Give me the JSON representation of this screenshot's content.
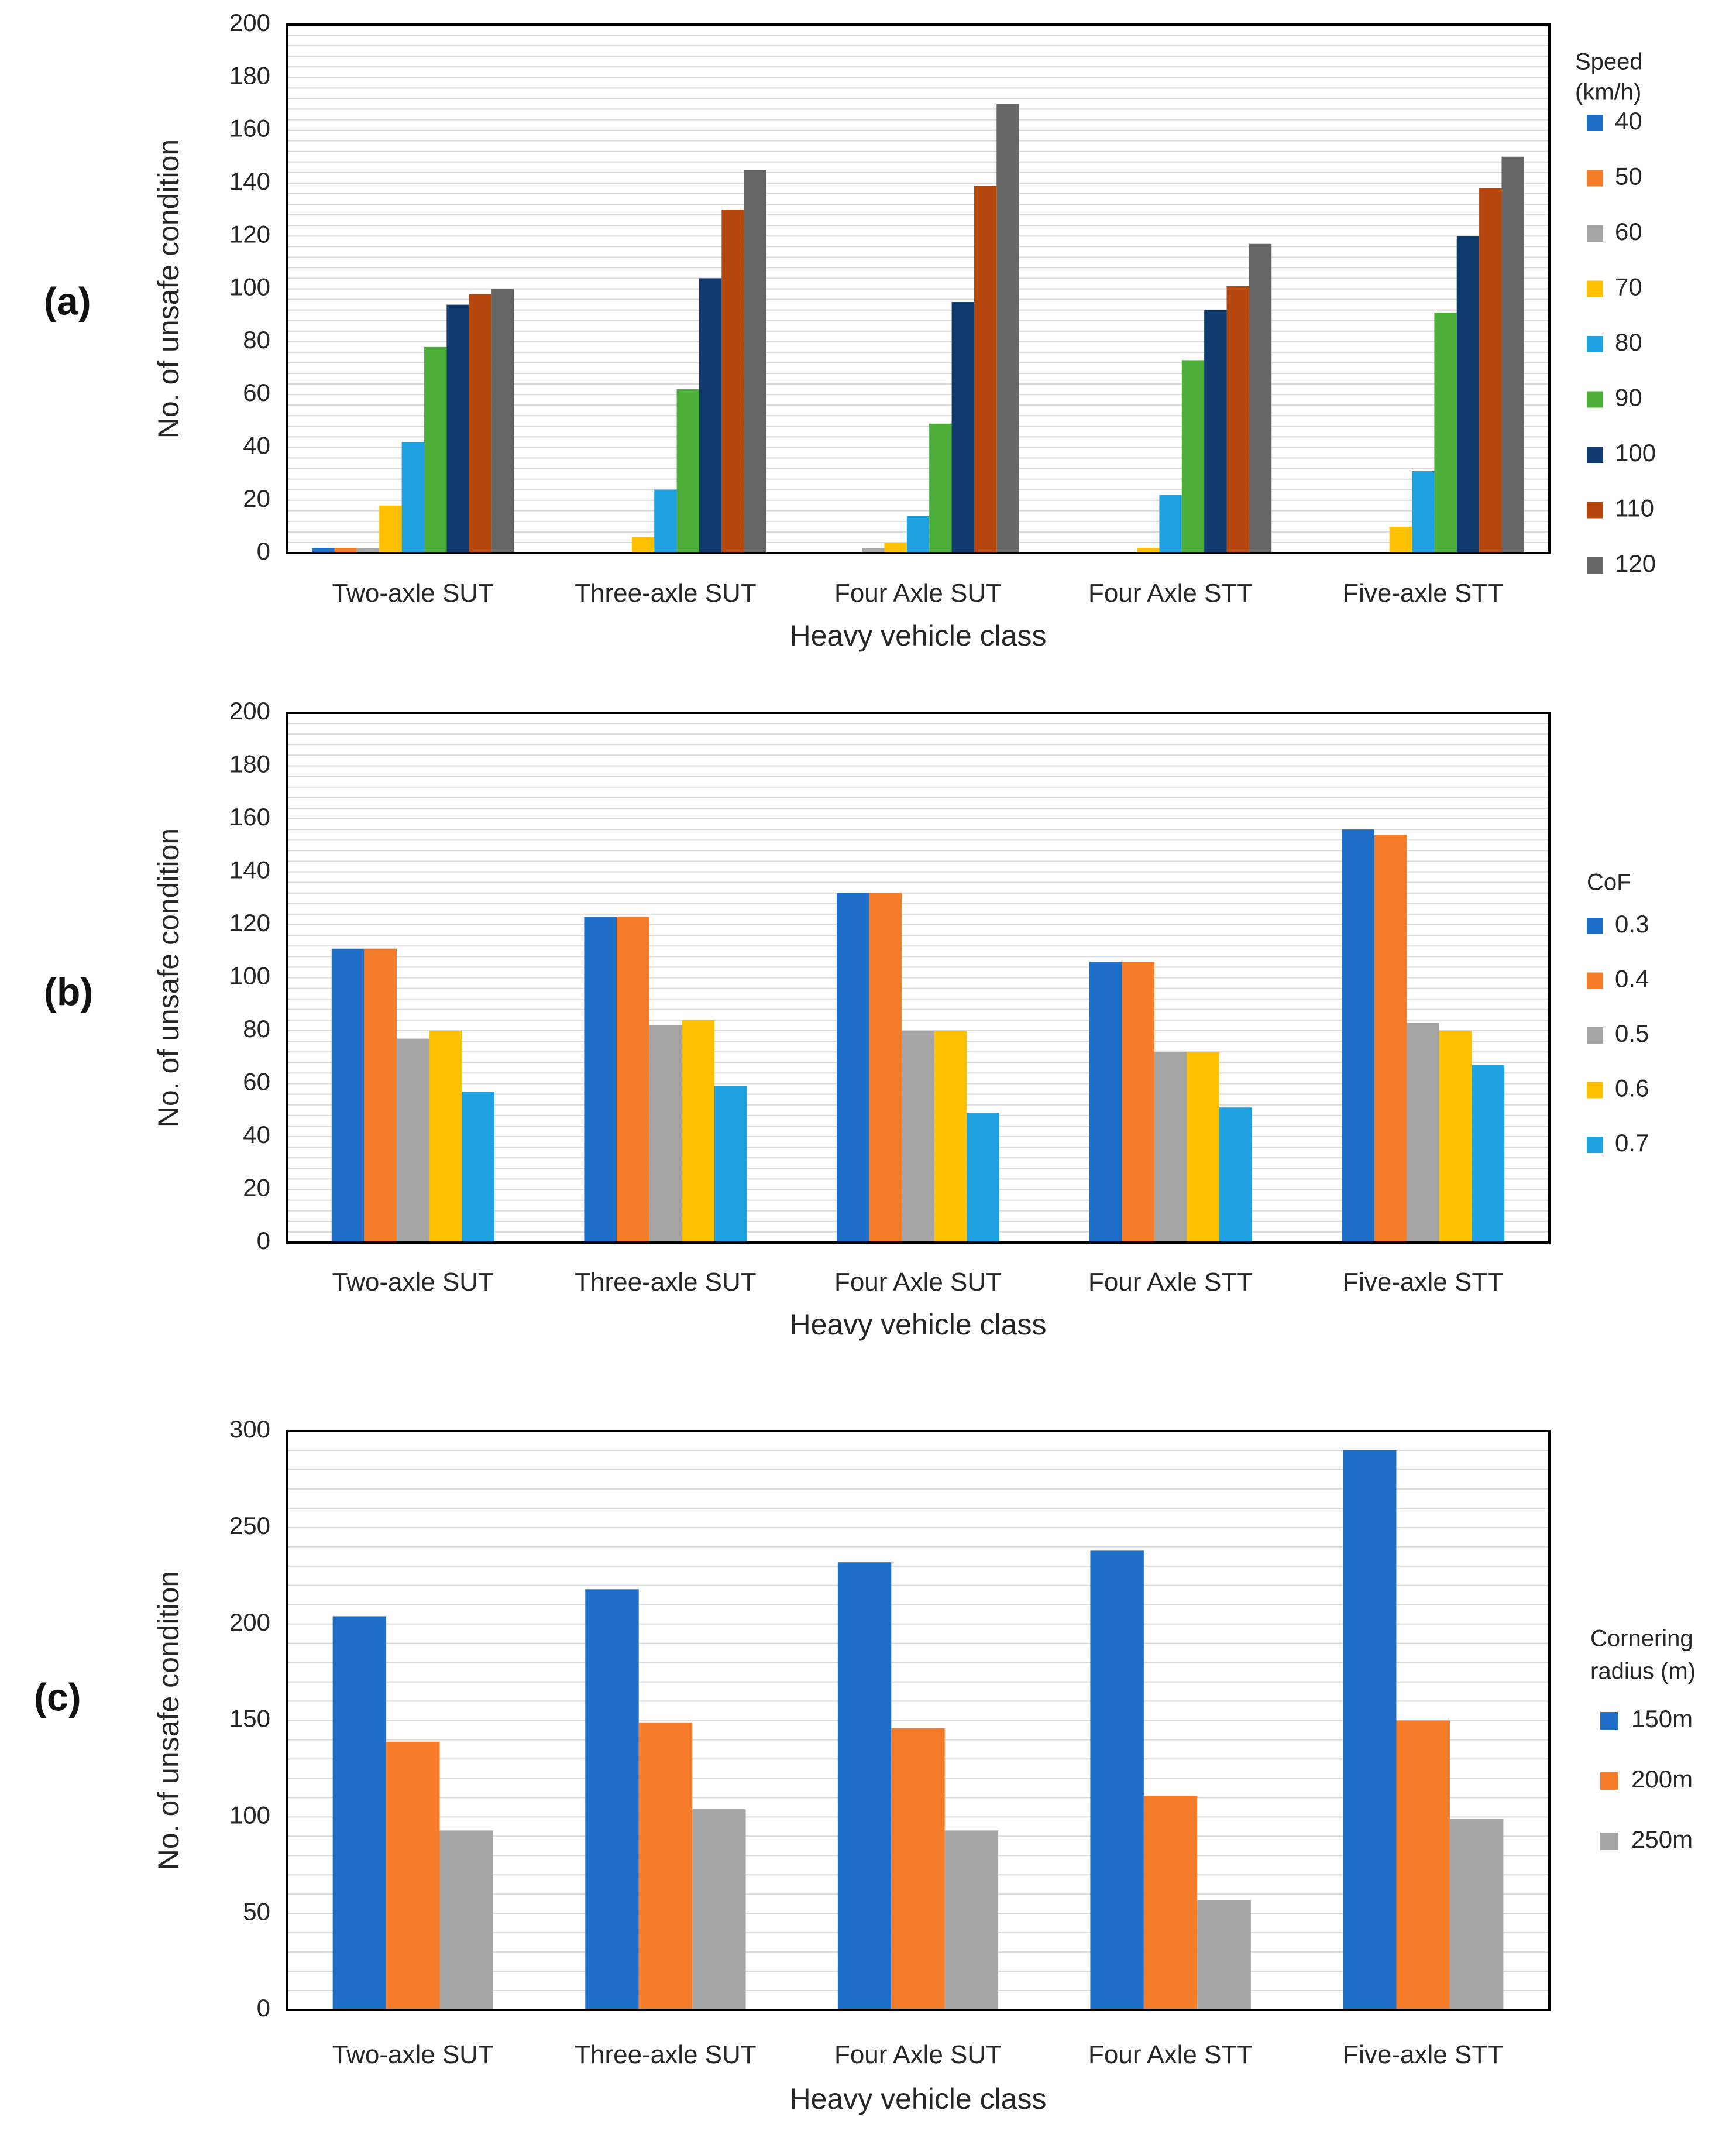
{
  "figure": {
    "panels": [
      {
        "id": "a",
        "panel_label": "(a)"
      },
      {
        "id": "b",
        "panel_label": "(b)"
      },
      {
        "id": "c",
        "panel_label": "(c)"
      }
    ]
  },
  "chart_data": [
    {
      "id": "a",
      "type": "bar",
      "title": "",
      "xlabel": "Heavy vehicle class",
      "ylabel": "No. of unsafe condition",
      "ylim": [
        0,
        200
      ],
      "yticks": [
        0,
        20,
        40,
        60,
        80,
        100,
        120,
        140,
        160,
        180,
        200
      ],
      "minor_grid_step": 4,
      "grid": true,
      "legend_position": "right",
      "legend_title_lines": [
        "Speed",
        "(km/h)"
      ],
      "categories": [
        "Two-axle SUT",
        "Three-axle SUT",
        "Four Axle SUT",
        "Four Axle STT",
        "Five-axle STT"
      ],
      "series": [
        {
          "name": "40",
          "color": "#1f6fc8",
          "values": [
            2,
            0,
            0,
            0,
            0
          ]
        },
        {
          "name": "50",
          "color": "#f57c28",
          "values": [
            2,
            0,
            0,
            0,
            0
          ]
        },
        {
          "name": "60",
          "color": "#a5a5a5",
          "values": [
            2,
            0,
            2,
            0,
            0
          ]
        },
        {
          "name": "70",
          "color": "#ffc000",
          "values": [
            18,
            6,
            4,
            2,
            10
          ]
        },
        {
          "name": "80",
          "color": "#1ea1e0",
          "values": [
            42,
            24,
            14,
            22,
            31
          ]
        },
        {
          "name": "90",
          "color": "#4daf3a",
          "values": [
            78,
            62,
            49,
            73,
            91
          ]
        },
        {
          "name": "100",
          "color": "#0e3a6e",
          "values": [
            94,
            104,
            95,
            92,
            120
          ]
        },
        {
          "name": "110",
          "color": "#b5460d",
          "values": [
            98,
            130,
            139,
            101,
            138
          ]
        },
        {
          "name": "120",
          "color": "#666666",
          "values": [
            100,
            145,
            170,
            117,
            150
          ]
        }
      ]
    },
    {
      "id": "b",
      "type": "bar",
      "title": "",
      "xlabel": "Heavy vehicle class",
      "ylabel": "No. of unsafe condition",
      "ylim": [
        0,
        200
      ],
      "yticks": [
        0,
        20,
        40,
        60,
        80,
        100,
        120,
        140,
        160,
        180,
        200
      ],
      "minor_grid_step": 4,
      "grid": true,
      "legend_position": "right",
      "legend_title_lines": [
        "CoF"
      ],
      "categories": [
        "Two-axle SUT",
        "Three-axle SUT",
        "Four Axle SUT",
        "Four Axle STT",
        "Five-axle STT"
      ],
      "series": [
        {
          "name": "0.3",
          "color": "#1f6fc8",
          "values": [
            111,
            123,
            132,
            106,
            156
          ]
        },
        {
          "name": "0.4",
          "color": "#f57c28",
          "values": [
            111,
            123,
            132,
            106,
            154
          ]
        },
        {
          "name": "0.5",
          "color": "#a5a5a5",
          "values": [
            77,
            82,
            80,
            72,
            83
          ]
        },
        {
          "name": "0.6",
          "color": "#ffc000",
          "values": [
            80,
            84,
            80,
            72,
            80
          ]
        },
        {
          "name": "0.7",
          "color": "#1ea1e0",
          "values": [
            57,
            59,
            49,
            51,
            67
          ]
        }
      ]
    },
    {
      "id": "c",
      "type": "bar",
      "title": "",
      "xlabel": "Heavy vehicle class",
      "ylabel": "No. of unsafe condition",
      "ylim": [
        0,
        300
      ],
      "yticks": [
        0,
        50,
        100,
        150,
        200,
        250,
        300
      ],
      "minor_grid_step": 10,
      "grid": true,
      "legend_position": "right",
      "legend_title_lines": [
        "Cornering",
        "radius (m)"
      ],
      "categories": [
        "Two-axle SUT",
        "Three-axle SUT",
        "Four Axle SUT",
        "Four Axle STT",
        "Five-axle STT"
      ],
      "series": [
        {
          "name": "150m",
          "color": "#1f6fc8",
          "values": [
            204,
            218,
            232,
            238,
            290
          ]
        },
        {
          "name": "200m",
          "color": "#f57c28",
          "values": [
            139,
            149,
            146,
            111,
            150
          ]
        },
        {
          "name": "250m",
          "color": "#a5a5a5",
          "values": [
            93,
            104,
            93,
            57,
            99
          ]
        }
      ]
    }
  ]
}
